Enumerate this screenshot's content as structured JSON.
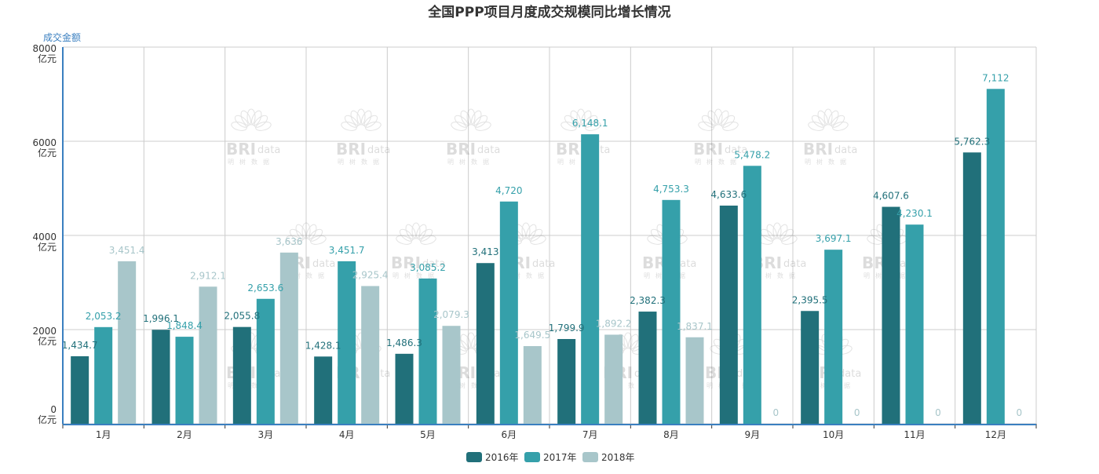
{
  "chart_data": {
    "type": "bar",
    "title": "全国PPP项目月度成交规模同比增长情况",
    "ylabel": "成交金额",
    "ylim": [
      0,
      8000
    ],
    "yticks": [
      "0\n亿元",
      "2000\n亿元",
      "4000\n亿元",
      "6000\n亿元",
      "8000\n亿元"
    ],
    "ytick_values": [
      0,
      2000,
      4000,
      6000,
      8000
    ],
    "grid": true,
    "legend_position": "bottom",
    "categories": [
      "1月",
      "2月",
      "3月",
      "4月",
      "5月",
      "6月",
      "7月",
      "8月",
      "9月",
      "10月",
      "11月",
      "12月"
    ],
    "series": [
      {
        "name": "2016年",
        "color": "#21707a",
        "values": [
          1434.7,
          1996.1,
          2055.8,
          1428.1,
          1486.3,
          3413,
          1799.9,
          2382.3,
          4633.6,
          2395.5,
          4607.6,
          5762.3
        ]
      },
      {
        "name": "2017年",
        "color": "#35a0aa",
        "values": [
          2053.2,
          1848.4,
          2653.6,
          3451.7,
          3085.2,
          4720,
          6148.1,
          4753.3,
          5478.2,
          3697.1,
          4230.1,
          7112
        ]
      },
      {
        "name": "2018年",
        "color": "#a8c6ca",
        "values": [
          3451.4,
          2912.1,
          3636,
          2925.4,
          2079.3,
          1649.5,
          1892.2,
          1837.1,
          0,
          0,
          0,
          0
        ]
      }
    ],
    "watermark": "BRIdata 明树数据"
  }
}
